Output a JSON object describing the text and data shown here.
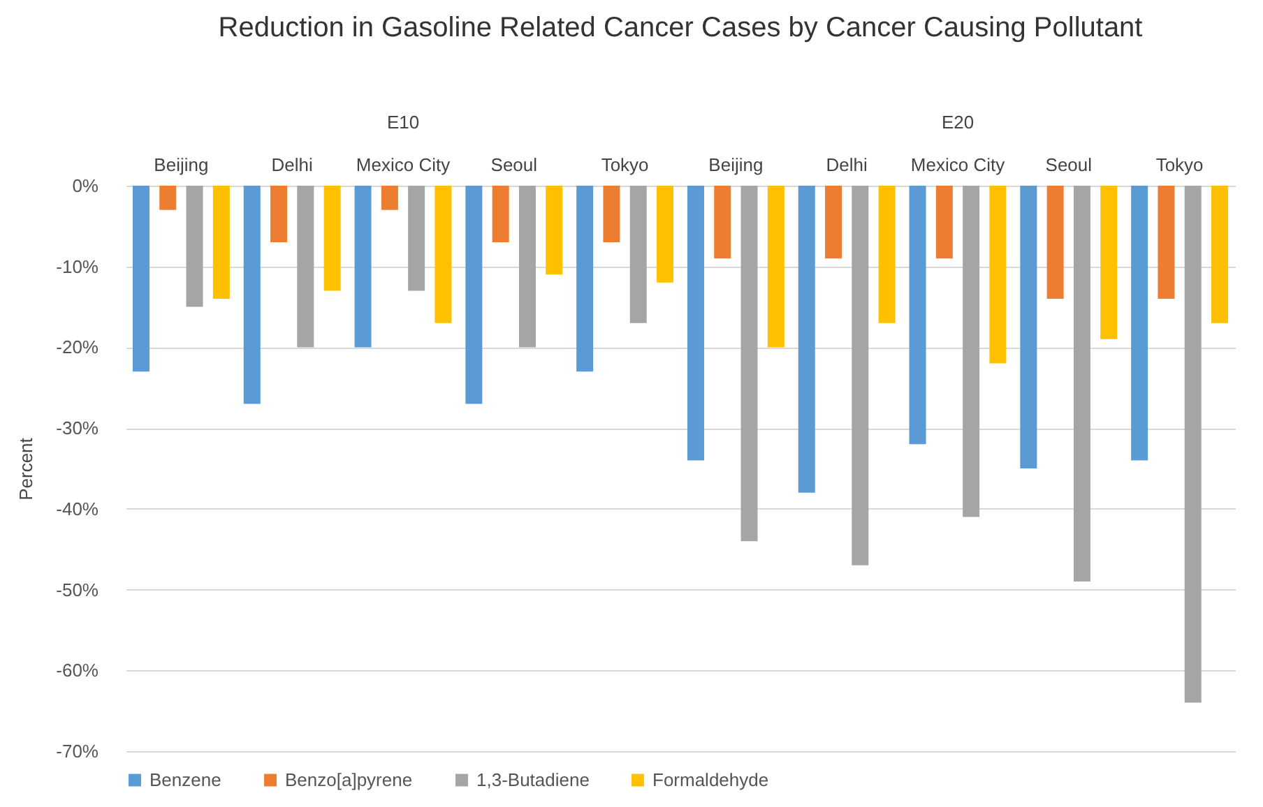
{
  "chart_data": {
    "type": "bar",
    "title": "Reduction in Gasoline Related Cancer Cases by Cancer Causing Pollutant",
    "ylabel": "Percent",
    "categories": [
      "Beijing",
      "Delhi",
      "Mexico City",
      "Seoul",
      "Tokyo",
      "Beijing",
      "Delhi",
      "Mexico City",
      "Seoul",
      "Tokyo"
    ],
    "annotations": [
      "E10",
      "E20"
    ],
    "series": [
      {
        "name": "Benzene",
        "color": "#5b9bd5",
        "values": [
          -23,
          -27,
          -20,
          -27,
          -23,
          -34,
          -38,
          -32,
          -35,
          -34
        ]
      },
      {
        "name": "Benzo[a]pyrene",
        "color": "#ed7d31",
        "values": [
          -3,
          -7,
          -3,
          -7,
          -7,
          -9,
          -9,
          -9,
          -14,
          -14
        ]
      },
      {
        "name": "1,3-Butadiene",
        "color": "#a5a5a5",
        "values": [
          -15,
          -20,
          -13,
          -20,
          -17,
          -44,
          -47,
          -41,
          -49,
          -64
        ]
      },
      {
        "name": "Formaldehyde",
        "color": "#ffc000",
        "values": [
          -14,
          -13,
          -17,
          -11,
          -12,
          -20,
          -17,
          -22,
          -19,
          -17
        ]
      }
    ],
    "ylim": [
      -70,
      0
    ],
    "yticks": [
      {
        "value": -70,
        "label": "-70%"
      },
      {
        "value": -60,
        "label": "-60%"
      },
      {
        "value": -50,
        "label": "-50%"
      },
      {
        "value": -40,
        "label": "-40%"
      },
      {
        "value": -30,
        "label": "-30%"
      },
      {
        "value": -20,
        "label": "-20%"
      },
      {
        "value": -10,
        "label": "-10%"
      },
      {
        "value": 0,
        "label": "0%"
      }
    ],
    "grid": "y",
    "legend": "bottom"
  }
}
